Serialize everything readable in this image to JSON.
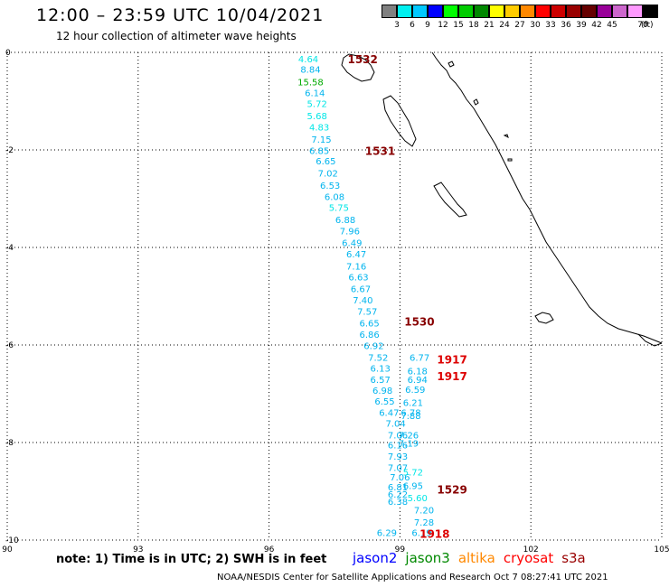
{
  "header": {
    "title": "12:00 – 23:59 UTC 10/04/2021",
    "subtitle": "12 hour collection of altimeter wave heights"
  },
  "color_scale": {
    "colors": [
      "#808080",
      "#00f0f0",
      "#00c8ff",
      "#0000ff",
      "#00ff00",
      "#00cc00",
      "#008800",
      "#ffff00",
      "#ffcc00",
      "#ff8800",
      "#ff0000",
      "#cc0000",
      "#990000",
      "#660000",
      "#990099",
      "#cc66cc",
      "#ff99ff",
      "#000000"
    ],
    "labels": [
      "3",
      "6",
      "9",
      "12",
      "15",
      "18",
      "21",
      "24",
      "27",
      "30",
      "33",
      "36",
      "39",
      "42",
      "45",
      "70"
    ],
    "unit": "(ft)"
  },
  "map": {
    "lon_ticks": [
      "90",
      "93",
      "96",
      "99",
      "102",
      "105"
    ],
    "lat_ticks": [
      "0",
      "-2",
      "-4",
      "-6",
      "-8",
      "-10"
    ],
    "lon_range": [
      90,
      105
    ],
    "lat_range": [
      -10,
      0
    ],
    "grid": "dotted"
  },
  "tracks": [
    {
      "satellite": "jason2",
      "color": "#00c8ff",
      "points": [
        {
          "lon": 96.9,
          "lat": -0.2,
          "swh": "4.64"
        },
        {
          "lon": 96.95,
          "lat": -0.42,
          "swh": "8.84"
        },
        {
          "lon": 96.95,
          "lat": -0.68,
          "swh": "15.58"
        },
        {
          "lon": 97.05,
          "lat": -0.9,
          "swh": "6.14"
        },
        {
          "lon": 97.1,
          "lat": -1.12,
          "swh": "5.72"
        },
        {
          "lon": 97.1,
          "lat": -1.37,
          "swh": "5.68"
        },
        {
          "lon": 97.15,
          "lat": -1.6,
          "swh": "4.83"
        },
        {
          "lon": 97.2,
          "lat": -1.85,
          "swh": "7.15"
        },
        {
          "lon": 97.15,
          "lat": -2.08,
          "swh": "6.85"
        },
        {
          "lon": 97.3,
          "lat": -2.3,
          "swh": "6.65"
        },
        {
          "lon": 97.35,
          "lat": -2.55,
          "swh": "7.02"
        },
        {
          "lon": 97.4,
          "lat": -2.8,
          "swh": "6.53"
        },
        {
          "lon": 97.5,
          "lat": -3.03,
          "swh": "6.08"
        },
        {
          "lon": 97.6,
          "lat": -3.25,
          "swh": "5.75"
        },
        {
          "lon": 97.75,
          "lat": -3.5,
          "swh": "6.88"
        },
        {
          "lon": 97.85,
          "lat": -3.73,
          "swh": "7.96"
        },
        {
          "lon": 97.9,
          "lat": -3.97,
          "swh": "6.49"
        },
        {
          "lon": 98.0,
          "lat": -4.2,
          "swh": "6.47"
        },
        {
          "lon": 98.0,
          "lat": -4.45,
          "swh": "7.16"
        },
        {
          "lon": 98.05,
          "lat": -4.68,
          "swh": "6.63"
        },
        {
          "lon": 98.1,
          "lat": -4.92,
          "swh": "6.67"
        },
        {
          "lon": 98.15,
          "lat": -5.15,
          "swh": "7.40"
        },
        {
          "lon": 98.25,
          "lat": -5.38,
          "swh": "7.57"
        },
        {
          "lon": 98.3,
          "lat": -5.62,
          "swh": "6.65"
        },
        {
          "lon": 98.3,
          "lat": -5.85,
          "swh": "6.86"
        },
        {
          "lon": 98.4,
          "lat": -6.08,
          "swh": "6.92"
        },
        {
          "lon": 98.5,
          "lat": -6.32,
          "swh": "7.52"
        },
        {
          "lon": 98.55,
          "lat": -6.55,
          "swh": "6.13"
        },
        {
          "lon": 98.55,
          "lat": -6.78,
          "swh": "6.57"
        },
        {
          "lon": 98.6,
          "lat": -7.0,
          "swh": "6.98"
        },
        {
          "lon": 98.65,
          "lat": -7.22,
          "swh": "6.55"
        },
        {
          "lon": 98.75,
          "lat": -7.45,
          "swh": "6.47"
        },
        {
          "lon": 98.9,
          "lat": -7.68,
          "swh": "7.04"
        },
        {
          "lon": 98.95,
          "lat": -7.92,
          "swh": "7.06"
        },
        {
          "lon": 98.95,
          "lat": -8.12,
          "swh": "6.16"
        },
        {
          "lon": 98.95,
          "lat": -8.35,
          "swh": "7.93"
        },
        {
          "lon": 98.95,
          "lat": -8.58,
          "swh": "7.07"
        },
        {
          "lon": 99.0,
          "lat": -8.78,
          "swh": "7.06"
        },
        {
          "lon": 98.95,
          "lat": -8.98,
          "swh": "6.81"
        },
        {
          "lon": 98.95,
          "lat": -9.13,
          "swh": "6.22"
        },
        {
          "lon": 98.95,
          "lat": -9.28,
          "swh": "6.38"
        }
      ]
    },
    {
      "satellite": "jason2",
      "color": "#00c8ff",
      "points": [
        {
          "lon": 99.45,
          "lat": -6.32,
          "swh": "6.77"
        },
        {
          "lon": 99.4,
          "lat": -6.6,
          "swh": "6.18"
        },
        {
          "lon": 99.4,
          "lat": -6.78,
          "swh": "6.94"
        },
        {
          "lon": 99.35,
          "lat": -6.98,
          "swh": "6.59"
        },
        {
          "lon": 99.3,
          "lat": -7.25,
          "swh": "6.21"
        },
        {
          "lon": 99.25,
          "lat": -7.45,
          "swh": "6.78"
        },
        {
          "lon": 99.25,
          "lat": -7.52,
          "swh": "7.88"
        },
        {
          "lon": 99.2,
          "lat": -7.92,
          "swh": "7.26"
        },
        {
          "lon": 99.2,
          "lat": -8.08,
          "swh": "7.19"
        },
        {
          "lon": 99.3,
          "lat": -8.68,
          "swh": "5.72"
        },
        {
          "lon": 99.3,
          "lat": -8.95,
          "swh": "6.95"
        },
        {
          "lon": 99.4,
          "lat": -9.2,
          "swh": "5.60"
        },
        {
          "lon": 99.55,
          "lat": -9.45,
          "swh": "7.20"
        },
        {
          "lon": 99.55,
          "lat": -9.7,
          "swh": "7.28"
        },
        {
          "lon": 98.7,
          "lat": -9.92,
          "swh": "6.29"
        },
        {
          "lon": 99.5,
          "lat": -9.92,
          "swh": "6.19"
        }
      ]
    }
  ],
  "time_labels": [
    {
      "text": "1532",
      "lon": 97.8,
      "lat": -0.22,
      "color": "#880000"
    },
    {
      "text": "1531",
      "lon": 98.2,
      "lat": -2.1,
      "color": "#880000"
    },
    {
      "text": "1530",
      "lon": 99.1,
      "lat": -5.6,
      "color": "#880000"
    },
    {
      "text": "1917",
      "lon": 99.85,
      "lat": -6.38,
      "color": "#dd0000"
    },
    {
      "text": "1917",
      "lon": 99.85,
      "lat": -6.72,
      "color": "#dd0000"
    },
    {
      "text": "1529",
      "lon": 99.85,
      "lat": -9.05,
      "color": "#880000"
    },
    {
      "text": "1918",
      "lon": 99.45,
      "lat": -9.95,
      "color": "#dd0000"
    }
  ],
  "note": "note: 1) Time is in UTC; 2) SWH is in feet",
  "legend": [
    {
      "name": "jason2",
      "color": "#0000ff"
    },
    {
      "name": "jason3",
      "color": "#008800"
    },
    {
      "name": "altika",
      "color": "#ff8800"
    },
    {
      "name": "cryosat",
      "color": "#ff0000"
    },
    {
      "name": "s3a",
      "color": "#990000"
    }
  ],
  "footer": "NOAA/NESDIS Center for Satellite Applications and Research    Oct  7 08:27:41 UTC 2021"
}
